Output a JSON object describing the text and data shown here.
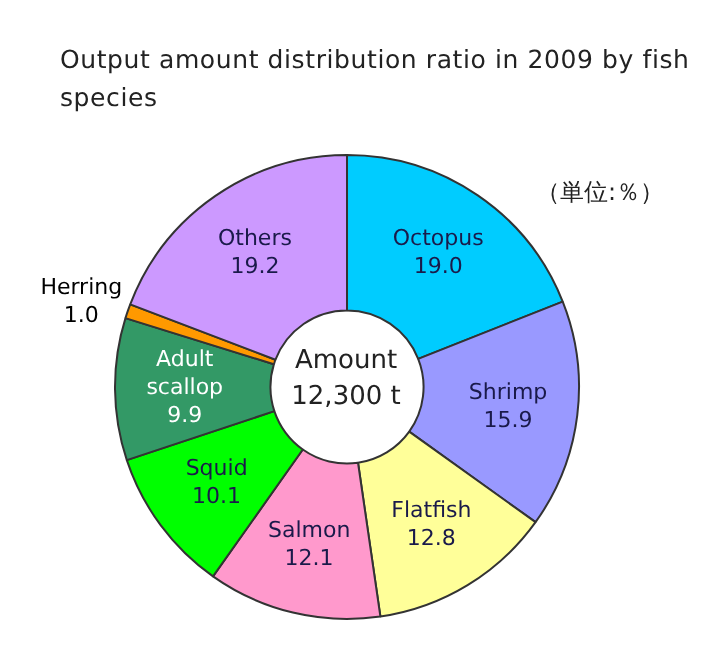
{
  "chart_data": {
    "type": "donut",
    "title": "Output amount distribution ratio in 2009  by fish species",
    "categories": [
      "Octopus",
      "Shrimp",
      "Flatfish",
      "Salmon",
      "Squid",
      "Adult scallop",
      "Herring",
      "Others"
    ],
    "values": [
      19.0,
      15.9,
      12.8,
      12.1,
      10.1,
      9.9,
      1.0,
      19.2
    ],
    "colors": [
      "#00ccff",
      "#9999ff",
      "#ffff99",
      "#ff99cc",
      "#00ff00",
      "#339966",
      "#ff9900",
      "#cc99ff"
    ],
    "value_labels": [
      "19.0",
      "15.9",
      "12.8",
      "12.1",
      "10.1",
      "9.9",
      "1.0",
      "19.2"
    ],
    "legend": false,
    "annotations": [
      "（単位:％）",
      "Amount",
      "12,300 t"
    ]
  }
}
